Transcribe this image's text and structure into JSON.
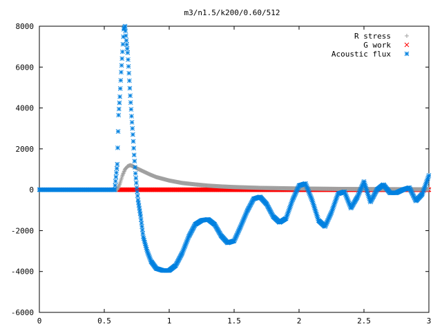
{
  "chart_data": {
    "type": "scatter",
    "title": "m3/n1.5/k200/0.60/512",
    "xlabel": "",
    "ylabel": "",
    "xlim": [
      0,
      3
    ],
    "ylim": [
      -6000,
      8000
    ],
    "x_ticks": [
      0,
      0.5,
      1,
      1.5,
      2,
      2.5,
      3
    ],
    "x_tick_labels": [
      "0",
      "0.5",
      "1",
      "1.5",
      "2",
      "2.5",
      "3"
    ],
    "y_ticks": [
      -6000,
      -4000,
      -2000,
      0,
      2000,
      4000,
      6000,
      8000
    ],
    "y_tick_labels": [
      "-6000",
      "-4000",
      "-2000",
      "0",
      "2000",
      "4000",
      "6000",
      "8000"
    ],
    "grid": false,
    "legend_position": "top-right",
    "series": [
      {
        "name": "R stress",
        "marker": "plus",
        "color": "#a0a0a0",
        "x": [
          0,
          0.3,
          0.6,
          0.62,
          0.64,
          0.66,
          0.68,
          0.7,
          0.72,
          0.75,
          0.8,
          0.85,
          0.9,
          1.0,
          1.1,
          1.2,
          1.3,
          1.4,
          1.5,
          1.7,
          2.0,
          2.3,
          2.6,
          3.0
        ],
        "y": [
          0,
          0,
          0,
          300,
          700,
          1000,
          1150,
          1200,
          1150,
          1050,
          900,
          750,
          620,
          450,
          330,
          260,
          200,
          160,
          130,
          90,
          60,
          40,
          30,
          20
        ]
      },
      {
        "name": "G work",
        "marker": "cross",
        "color": "#ff0000",
        "x": [
          0.6,
          3.0
        ],
        "y": [
          0,
          0
        ]
      },
      {
        "name": "Acoustic flux",
        "marker": "star",
        "color": "#0080e0",
        "x": [
          0,
          0.3,
          0.58,
          0.6,
          0.61,
          0.62,
          0.63,
          0.64,
          0.65,
          0.66,
          0.67,
          0.68,
          0.69,
          0.7,
          0.71,
          0.72,
          0.73,
          0.74,
          0.75,
          0.76,
          0.78,
          0.8,
          0.83,
          0.86,
          0.9,
          0.95,
          1.0,
          1.05,
          1.1,
          1.15,
          1.2,
          1.25,
          1.3,
          1.35,
          1.4,
          1.45,
          1.5,
          1.55,
          1.6,
          1.65,
          1.7,
          1.75,
          1.8,
          1.85,
          1.9,
          1.95,
          2.0,
          2.05,
          2.1,
          2.15,
          2.2,
          2.25,
          2.3,
          2.35,
          2.4,
          2.45,
          2.5,
          2.55,
          2.6,
          2.65,
          2.7,
          2.75,
          2.8,
          2.85,
          2.9,
          2.95,
          3.0
        ],
        "y": [
          0,
          0,
          0,
          1250,
          3650,
          4550,
          5750,
          6750,
          7850,
          8000,
          7300,
          6700,
          5700,
          4600,
          3600,
          2700,
          1700,
          800,
          100,
          -500,
          -1300,
          -2300,
          -3000,
          -3500,
          -3850,
          -3950,
          -3950,
          -3700,
          -3100,
          -2300,
          -1700,
          -1500,
          -1450,
          -1700,
          -2250,
          -2600,
          -2500,
          -1800,
          -1050,
          -450,
          -350,
          -700,
          -1300,
          -1600,
          -1400,
          -500,
          200,
          300,
          -500,
          -1500,
          -1800,
          -1100,
          -200,
          -100,
          -900,
          -350,
          400,
          -600,
          0,
          250,
          -150,
          -150,
          0,
          100,
          -550,
          -200,
          700
        ]
      }
    ]
  }
}
